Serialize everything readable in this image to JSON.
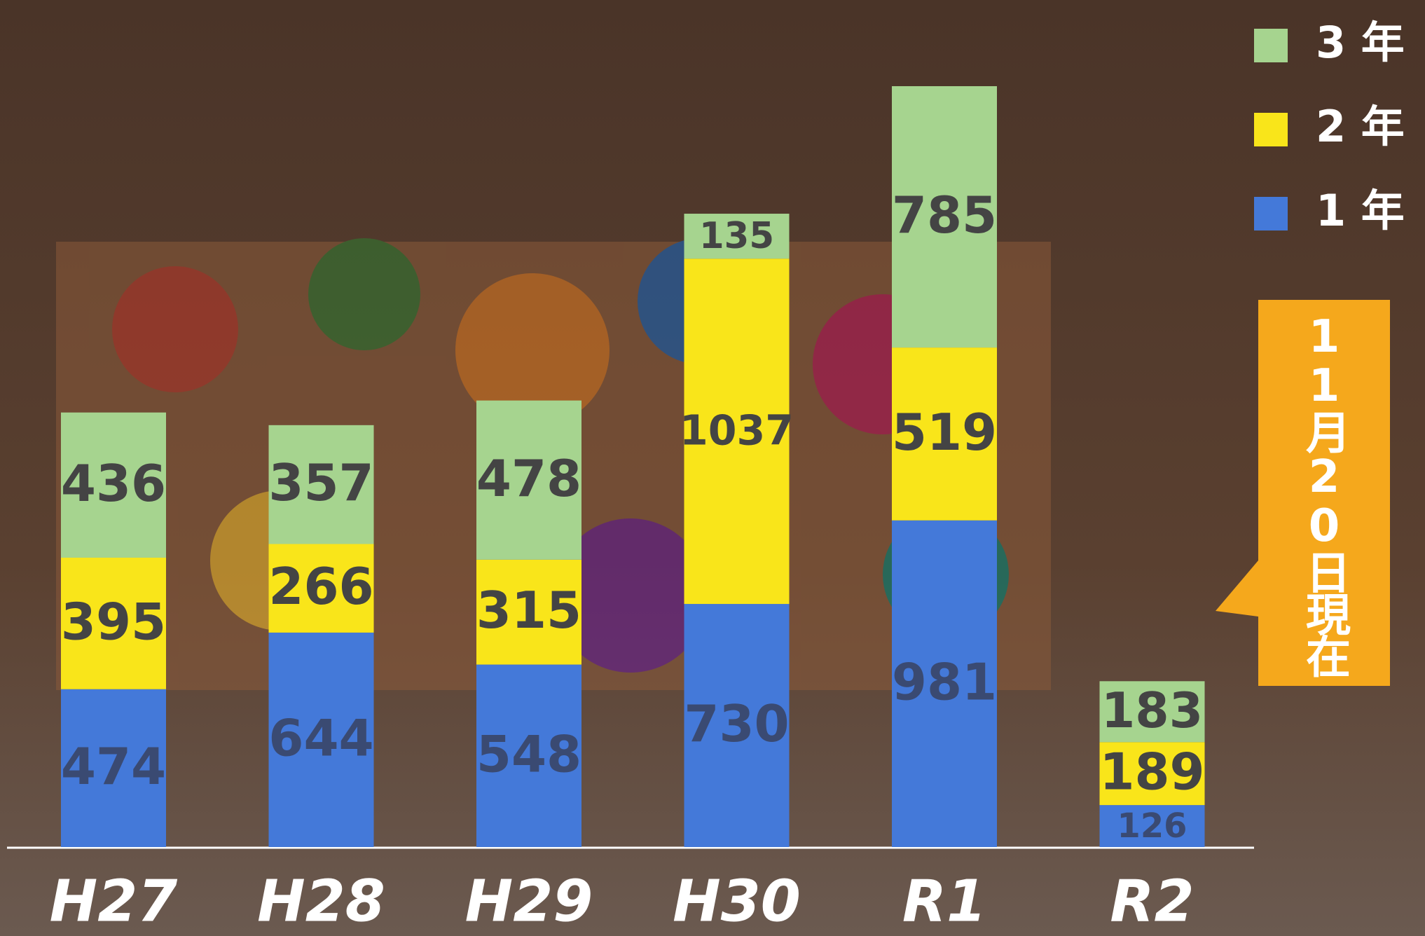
{
  "chart_data": {
    "type": "bar",
    "stacked": true,
    "categories": [
      "H27",
      "H28",
      "H29",
      "H30",
      "R1",
      "R2"
    ],
    "series": [
      {
        "name": "1 年",
        "color": "#4479d9",
        "values": [
          474,
          644,
          548,
          730,
          981,
          126
        ]
      },
      {
        "name": "2 年",
        "color": "#f9e51a",
        "values": [
          395,
          266,
          315,
          1037,
          519,
          189
        ]
      },
      {
        "name": "3 年",
        "color": "#a6d48f",
        "values": [
          436,
          357,
          478,
          135,
          785,
          183
        ]
      }
    ],
    "annotation": "11月20日現在"
  }
}
